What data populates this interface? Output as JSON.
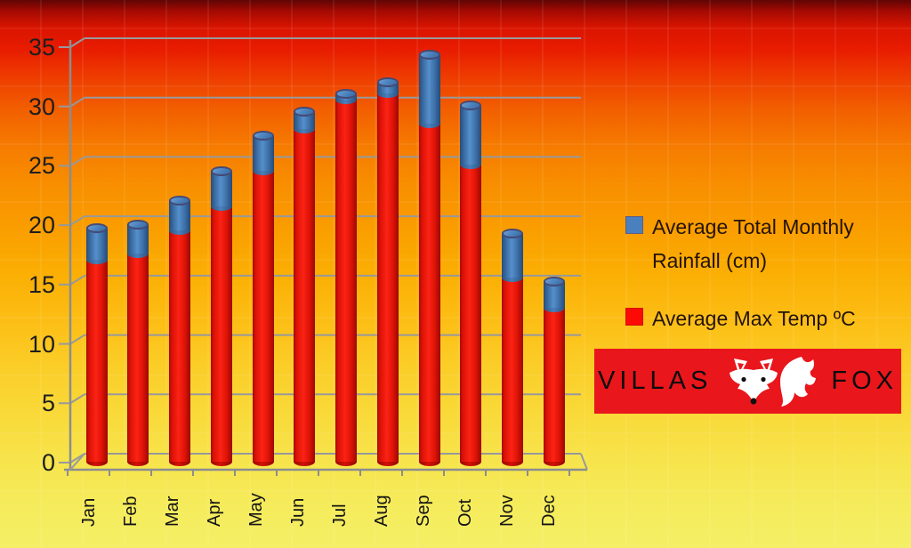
{
  "chart_data": {
    "type": "bar",
    "subtype": "stacked-3d-cylinder",
    "categories": [
      "Jan",
      "Feb",
      "Mar",
      "Apr",
      "May",
      "Jun",
      "Jul",
      "Aug",
      "Sep",
      "Oct",
      "Nov",
      "Dec"
    ],
    "series": [
      {
        "name": "Average Max Temp ºC",
        "color": "#ed1508",
        "values": [
          17,
          17.5,
          19.5,
          21.5,
          24.5,
          28,
          30.5,
          31,
          28.5,
          25,
          15.5,
          13
        ]
      },
      {
        "name": "Average Total Monthly Rainfall (cm)",
        "color": "#4a80bd",
        "values": [
          2.7,
          2.5,
          2.5,
          3,
          3,
          1.5,
          0.5,
          1,
          5.8,
          5,
          3.7,
          2.2
        ]
      }
    ],
    "ylim": [
      0,
      35
    ],
    "yticks": [
      0,
      5,
      10,
      15,
      20,
      25,
      30,
      35
    ],
    "grid": true,
    "legend_position": "right"
  },
  "legend": {
    "items": [
      {
        "label": "Average Total Monthly Rainfall (cm)",
        "color": "#4a80bd"
      },
      {
        "label": "Average Max Temp ºC",
        "color": "#fb0a06"
      }
    ]
  },
  "logo": {
    "brand_left": "VILLAS",
    "brand_right": "FOX",
    "icon": "fox-icon",
    "background": "#e9161c"
  }
}
